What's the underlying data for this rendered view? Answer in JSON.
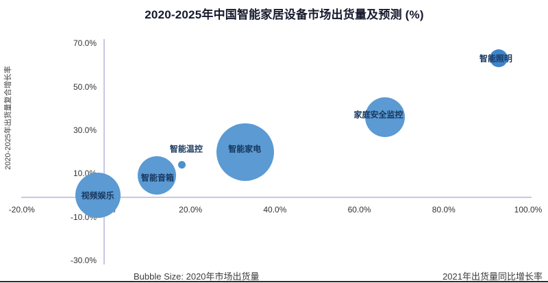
{
  "chart_data": {
    "type": "scatter",
    "subtype": "bubble",
    "title": "2020-2025年中国智能家居设备市场出货量及预测 (%)",
    "xlabel": "2021年出货量同比增长率",
    "ylabel": "2020-2025年出货量复合增长率",
    "size_note": "Bubble Size: 2020年市场出货量",
    "xlim": [
      -20,
      100
    ],
    "ylim": [
      -30,
      70
    ],
    "grid": "off",
    "legend": "none",
    "x_ticks": [
      {
        "value": -20,
        "label": "-20.0%"
      },
      {
        "value": 0,
        "label": "0.0%"
      },
      {
        "value": 20,
        "label": "20.0%"
      },
      {
        "value": 40,
        "label": "40.0%"
      },
      {
        "value": 60,
        "label": "60.0%"
      },
      {
        "value": 80,
        "label": "80.0%"
      },
      {
        "value": 100,
        "label": "100.0%"
      }
    ],
    "y_ticks": [
      {
        "value": 70,
        "label": "70.0%"
      },
      {
        "value": 50,
        "label": "50.0%"
      },
      {
        "value": 30,
        "label": "30.0%"
      },
      {
        "value": 10,
        "label": "10.0%"
      },
      {
        "value": -10,
        "label": "-10.0%"
      },
      {
        "value": -30,
        "label": "-30.0%"
      }
    ],
    "points": [
      {
        "label": "视频娱乐",
        "x": -2,
        "y": 0,
        "r": 33,
        "label_pos": "inside"
      },
      {
        "label": "智能音箱",
        "x": 12,
        "y": 9,
        "r": 28,
        "label_pos": "inside"
      },
      {
        "label": "智能温控",
        "x": 18,
        "y": 14,
        "r": 5.5,
        "label_pos": "above",
        "color": "#4c92cc"
      },
      {
        "label": "智能家电",
        "x": 33,
        "y": 20,
        "r": 42,
        "label_pos": "inside"
      },
      {
        "label": "家庭安全监控",
        "x": 66,
        "y": 36,
        "r": 29,
        "label_pos": "inside"
      },
      {
        "label": "智能照明",
        "x": 93,
        "y": 63,
        "r": 13,
        "label_pos": "inside",
        "color": "#4084c9"
      }
    ]
  },
  "colors": {
    "bubble": "#5b9ad2",
    "bubble_label": "#17375e",
    "axis_line": "#c7c7e6",
    "tick_text": "#333333",
    "title_text": "#14182b",
    "note_text": "#3c3c3c",
    "bottom_border": "#2b2b2b"
  }
}
